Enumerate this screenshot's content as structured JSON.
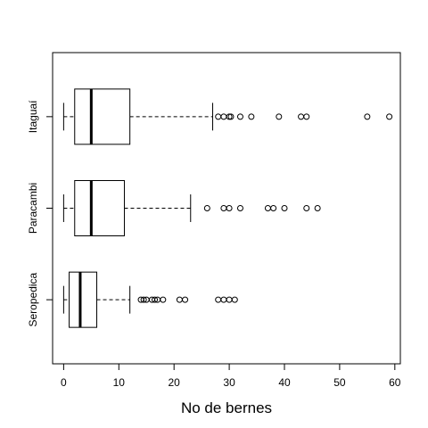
{
  "chart_data": {
    "type": "boxplot",
    "orientation": "horizontal",
    "title": "",
    "xlabel": "No de bernes",
    "ylabel": "",
    "xlim": [
      -2,
      61
    ],
    "xticks": [
      0,
      10,
      20,
      30,
      40,
      50,
      60
    ],
    "groups": [
      {
        "name": "Seropedica",
        "min": 0,
        "q1": 1,
        "median": 3,
        "q3": 6,
        "max": 12,
        "outliers": [
          14,
          14.5,
          15,
          16,
          16.5,
          17,
          18,
          21,
          22,
          28,
          29,
          30,
          31
        ]
      },
      {
        "name": "Paracambi",
        "min": 0,
        "q1": 2,
        "median": 5,
        "q3": 11,
        "max": 23,
        "outliers": [
          26,
          29,
          30,
          32,
          37,
          38,
          40,
          44,
          46
        ]
      },
      {
        "name": "Itaguaí",
        "min": 0,
        "q1": 2,
        "median": 5,
        "q3": 12,
        "max": 27,
        "outliers": [
          28,
          29,
          30,
          30.3,
          32,
          34,
          39,
          43,
          44,
          55,
          59
        ]
      }
    ]
  }
}
